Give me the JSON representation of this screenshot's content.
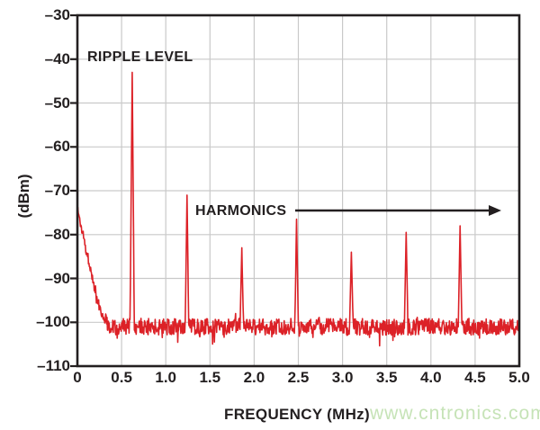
{
  "figure": {
    "background": "#ffffff",
    "watermark": {
      "text": "www.cntronics.com",
      "color": "#c6e3b7"
    }
  },
  "chart_data": {
    "type": "line",
    "title": "",
    "xlabel": "FREQUENCY (MHz)",
    "ylabel": "(dBm)",
    "xlim": [
      0,
      5
    ],
    "ylim": [
      -110,
      -30
    ],
    "x_ticks": [
      0,
      0.5,
      1.0,
      1.5,
      2.0,
      2.5,
      3.0,
      3.5,
      4.0,
      4.5,
      5.0
    ],
    "x_tick_labels": [
      "0",
      "0.5",
      "1.0",
      "1.5",
      "2.0",
      "2.5",
      "3.0",
      "3.5",
      "4.0",
      "4.5",
      "5.0"
    ],
    "y_ticks": [
      -30,
      -40,
      -50,
      -60,
      -70,
      -80,
      -90,
      -100,
      -110
    ],
    "y_tick_labels": [
      "–30",
      "–40",
      "–50",
      "–60",
      "–70",
      "–80",
      "–90",
      "–100",
      "–110"
    ],
    "grid": true,
    "legend": "none",
    "trace_color": "#dc2127",
    "grid_color": "#c9c9c9",
    "axis_color": "#231f20",
    "noise_floor_dbm": -101,
    "noise_peak_to_peak_db": 5,
    "low_freq_rolloff_envelope": [
      [
        0.0,
        -74
      ],
      [
        0.02,
        -76
      ],
      [
        0.05,
        -79
      ],
      [
        0.08,
        -80.5
      ],
      [
        0.1,
        -84
      ],
      [
        0.13,
        -86
      ],
      [
        0.16,
        -89
      ],
      [
        0.2,
        -93
      ],
      [
        0.25,
        -96.5
      ],
      [
        0.3,
        -99
      ],
      [
        0.35,
        -100.5
      ],
      [
        0.42,
        -101
      ],
      [
        5.0,
        -101
      ]
    ],
    "fundamental_mhz": 0.62,
    "peaks": [
      {
        "freq_mhz": 0.62,
        "level_dbm": -43
      },
      {
        "freq_mhz": 1.24,
        "level_dbm": -71
      },
      {
        "freq_mhz": 1.86,
        "level_dbm": -83
      },
      {
        "freq_mhz": 2.48,
        "level_dbm": -76.5
      },
      {
        "freq_mhz": 3.1,
        "level_dbm": -84
      },
      {
        "freq_mhz": 3.72,
        "level_dbm": -79.5
      },
      {
        "freq_mhz": 4.33,
        "level_dbm": -78
      }
    ],
    "annotations": [
      {
        "text": "RIPPLE LEVEL"
      },
      {
        "text": "HARMONICS",
        "arrow": "right"
      }
    ]
  }
}
